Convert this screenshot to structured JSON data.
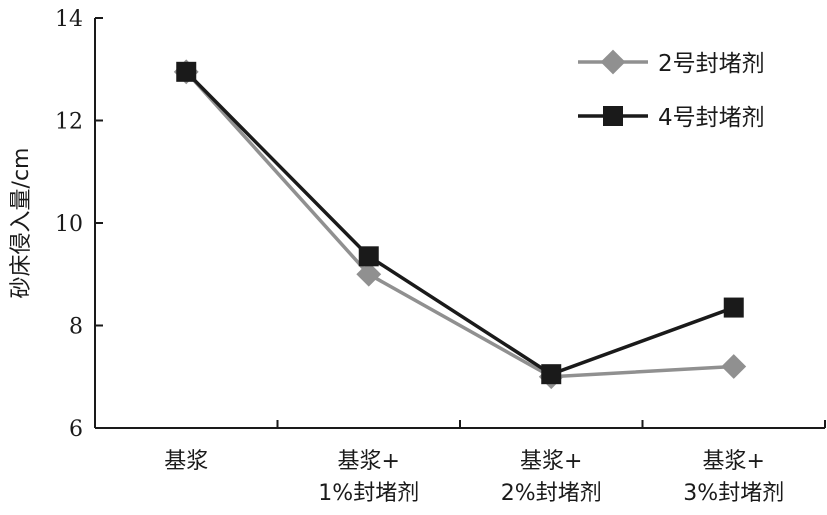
{
  "chart_data": {
    "type": "line",
    "categories": [
      [
        "基浆"
      ],
      [
        "基浆+",
        "1%封堵剂"
      ],
      [
        "基浆+",
        "2%封堵剂"
      ],
      [
        "基浆+",
        "3%封堵剂"
      ]
    ],
    "series": [
      {
        "name": "2号封堵剂",
        "values": [
          12.95,
          9.0,
          7.0,
          7.2
        ],
        "color": "#909090",
        "marker": "diamond"
      },
      {
        "name": "4号封堵剂",
        "values": [
          12.95,
          9.35,
          7.05,
          8.35
        ],
        "color": "#1a1a1a",
        "marker": "square"
      }
    ],
    "ylabel": "砂床侵入量/cm",
    "xlabel": "",
    "ylim": [
      6,
      14
    ],
    "yticks": [
      6,
      8,
      10,
      12,
      14
    ],
    "grid": false,
    "legend_position": "top-right"
  }
}
